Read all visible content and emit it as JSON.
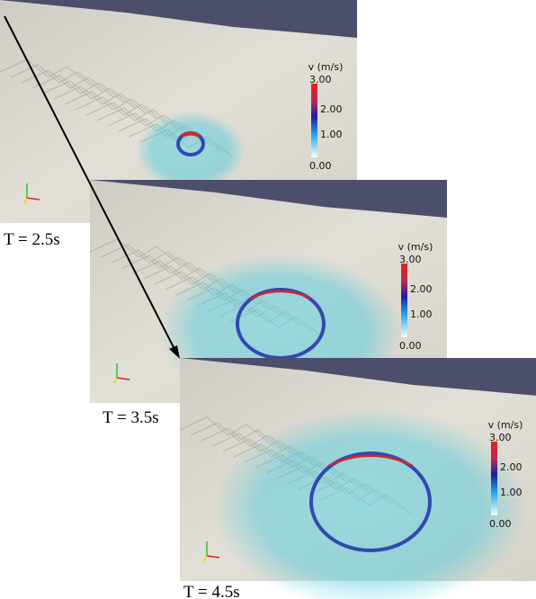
{
  "panels": [
    {
      "time_label": "T = 2.5s",
      "colorbar": {
        "title": "v (m/s)",
        "ticks": [
          "3.00",
          "2.00",
          "1.00",
          "0.00"
        ]
      }
    },
    {
      "time_label": "T = 3.5s",
      "colorbar": {
        "title": "v (m/s)",
        "ticks": [
          "3.00",
          "2.00",
          "1.00",
          "0.00"
        ]
      }
    },
    {
      "time_label": "T = 4.5s",
      "colorbar": {
        "title": "v (m/s)",
        "ticks": [
          "3.00",
          "2.00",
          "1.00",
          "0.00"
        ]
      }
    }
  ]
}
